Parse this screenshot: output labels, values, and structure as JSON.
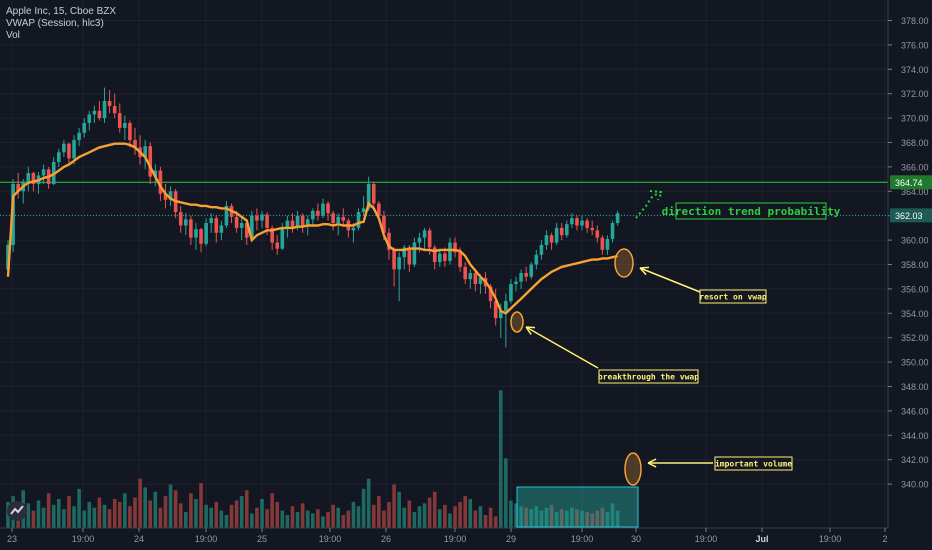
{
  "legend": {
    "symbol": "Apple Inc, 15, Cboe BZX",
    "indicator": "VWAP (Session, hlc3)",
    "volume": "Vol"
  },
  "chart_data": {
    "type": "candlestick",
    "ylim": [
      338.4,
      380.0
    ],
    "y_ticks": [
      "378.00",
      "376.00",
      "374.00",
      "372.00",
      "370.00",
      "368.00",
      "366.00",
      "364.00",
      "362.00",
      "360.00",
      "358.00",
      "356.00",
      "354.00",
      "352.00",
      "350.00",
      "348.00",
      "346.00",
      "344.00",
      "342.00",
      "340.00"
    ],
    "x_ticks": [
      "23",
      "19:00",
      "24",
      "19:00",
      "25",
      "19:00",
      "26",
      "19:00",
      "29",
      "19:00",
      "30",
      "19:00",
      "Jul",
      "19:00",
      "2"
    ],
    "price_labels": [
      {
        "value": 364.74,
        "text": "364.74",
        "color": "#2ecc40",
        "style": "solid"
      },
      {
        "value": 362.03,
        "text": "362.03",
        "color": "#26a69a",
        "style": "dotted"
      }
    ],
    "colors": {
      "up": "#26a69a",
      "down": "#ef5350",
      "vwap": "#f7a134",
      "annotation": "#fff176",
      "bg": "#131722"
    },
    "ohlc": [
      [
        357.6,
        360.0,
        357.0,
        359.6
      ],
      [
        359.6,
        365.0,
        359.0,
        364.6
      ],
      [
        364.6,
        365.5,
        363.4,
        364.0
      ],
      [
        364.0,
        365.0,
        363.0,
        364.8
      ],
      [
        364.8,
        366.0,
        364.0,
        365.5
      ],
      [
        365.5,
        365.6,
        364.0,
        364.6
      ],
      [
        364.6,
        365.6,
        363.8,
        365.3
      ],
      [
        365.3,
        366.2,
        364.6,
        365.8
      ],
      [
        365.8,
        366.0,
        364.2,
        364.6
      ],
      [
        364.6,
        366.8,
        364.5,
        366.4
      ],
      [
        366.4,
        367.5,
        366.0,
        367.2
      ],
      [
        367.2,
        368.2,
        366.8,
        367.9
      ],
      [
        367.9,
        368.0,
        366.2,
        366.7
      ],
      [
        366.7,
        368.6,
        366.2,
        368.2
      ],
      [
        368.2,
        369.2,
        367.7,
        368.8
      ],
      [
        368.8,
        370.0,
        368.4,
        369.6
      ],
      [
        369.6,
        370.6,
        369.0,
        370.3
      ],
      [
        370.3,
        371.0,
        369.6,
        370.6
      ],
      [
        370.6,
        371.4,
        369.8,
        370.0
      ],
      [
        370.0,
        372.5,
        369.6,
        371.4
      ],
      [
        371.4,
        372.3,
        370.4,
        371.0
      ],
      [
        371.0,
        372.0,
        370.0,
        370.4
      ],
      [
        370.4,
        371.2,
        368.8,
        369.2
      ],
      [
        369.2,
        370.2,
        368.2,
        369.6
      ],
      [
        369.6,
        369.8,
        367.6,
        368.2
      ],
      [
        368.2,
        369.2,
        367.0,
        367.6
      ],
      [
        367.6,
        368.6,
        366.2,
        366.8
      ],
      [
        366.8,
        368.2,
        365.8,
        367.7
      ],
      [
        367.7,
        368.0,
        364.6,
        365.2
      ],
      [
        365.2,
        366.2,
        364.4,
        365.7
      ],
      [
        365.7,
        366.0,
        363.2,
        363.8
      ],
      [
        363.8,
        364.6,
        362.6,
        363.3
      ],
      [
        363.3,
        364.4,
        362.8,
        364.0
      ],
      [
        364.0,
        364.2,
        361.8,
        362.3
      ],
      [
        362.3,
        362.8,
        360.6,
        361.2
      ],
      [
        361.2,
        362.2,
        360.4,
        361.7
      ],
      [
        361.7,
        362.0,
        359.6,
        360.2
      ],
      [
        360.2,
        361.4,
        359.2,
        360.9
      ],
      [
        360.9,
        361.0,
        359.0,
        359.7
      ],
      [
        359.7,
        361.8,
        359.5,
        361.4
      ],
      [
        361.4,
        362.2,
        360.6,
        361.8
      ],
      [
        361.8,
        362.0,
        359.8,
        360.6
      ],
      [
        360.6,
        361.6,
        360.0,
        361.2
      ],
      [
        361.2,
        363.2,
        361.0,
        362.8
      ],
      [
        362.8,
        363.0,
        361.4,
        361.9
      ],
      [
        361.9,
        362.4,
        360.6,
        361.0
      ],
      [
        361.0,
        361.8,
        360.0,
        361.4
      ],
      [
        361.4,
        361.6,
        359.6,
        360.2
      ],
      [
        360.2,
        362.4,
        360.0,
        362.0
      ],
      [
        362.0,
        362.6,
        360.8,
        361.6
      ],
      [
        361.6,
        362.4,
        361.0,
        362.1
      ],
      [
        362.1,
        362.3,
        360.4,
        361.0
      ],
      [
        361.0,
        361.2,
        359.2,
        359.8
      ],
      [
        359.8,
        360.4,
        358.8,
        359.3
      ],
      [
        359.3,
        361.4,
        359.2,
        361.0
      ],
      [
        361.0,
        362.0,
        360.2,
        361.6
      ],
      [
        361.6,
        362.2,
        360.6,
        361.1
      ],
      [
        361.1,
        362.4,
        360.8,
        362.0
      ],
      [
        362.0,
        362.2,
        360.6,
        361.2
      ],
      [
        361.2,
        362.0,
        360.4,
        361.7
      ],
      [
        361.7,
        362.6,
        361.2,
        362.4
      ],
      [
        362.4,
        363.0,
        361.6,
        362.0
      ],
      [
        362.0,
        363.4,
        361.8,
        363.0
      ],
      [
        363.0,
        363.2,
        361.6,
        362.2
      ],
      [
        362.2,
        362.4,
        360.8,
        361.4
      ],
      [
        361.4,
        362.2,
        360.4,
        361.9
      ],
      [
        361.9,
        362.6,
        361.2,
        361.6
      ],
      [
        361.6,
        361.8,
        360.2,
        360.8
      ],
      [
        360.8,
        361.4,
        359.8,
        361.0
      ],
      [
        361.0,
        362.6,
        360.8,
        362.3
      ],
      [
        362.3,
        363.6,
        362.0,
        362.6
      ],
      [
        362.6,
        365.2,
        362.4,
        364.6
      ],
      [
        364.6,
        364.8,
        362.4,
        363.0
      ],
      [
        363.0,
        363.2,
        361.6,
        362.0
      ],
      [
        362.0,
        362.4,
        360.0,
        360.6
      ],
      [
        360.6,
        361.0,
        358.4,
        359.2
      ],
      [
        359.2,
        359.4,
        356.2,
        357.6
      ],
      [
        357.6,
        359.0,
        355.0,
        358.6
      ],
      [
        358.6,
        359.6,
        357.6,
        359.4
      ],
      [
        359.4,
        359.6,
        357.4,
        358.0
      ],
      [
        358.0,
        360.2,
        357.8,
        359.8
      ],
      [
        359.8,
        360.6,
        359.0,
        360.2
      ],
      [
        360.2,
        361.0,
        359.2,
        360.8
      ],
      [
        360.8,
        361.0,
        358.8,
        359.4
      ],
      [
        359.4,
        359.6,
        357.6,
        358.2
      ],
      [
        358.2,
        359.2,
        357.8,
        358.9
      ],
      [
        358.9,
        359.4,
        357.8,
        358.3
      ],
      [
        358.3,
        360.2,
        358.0,
        359.8
      ],
      [
        359.8,
        360.2,
        358.6,
        359.0
      ],
      [
        359.0,
        359.4,
        357.4,
        357.8
      ],
      [
        357.8,
        358.2,
        356.4,
        356.8
      ],
      [
        356.8,
        357.6,
        356.0,
        357.3
      ],
      [
        357.3,
        357.6,
        355.8,
        356.4
      ],
      [
        356.4,
        357.2,
        355.6,
        356.9
      ],
      [
        356.9,
        357.4,
        355.6,
        356.2
      ],
      [
        356.2,
        356.4,
        354.4,
        355.0
      ],
      [
        355.0,
        356.0,
        353.0,
        353.6
      ],
      [
        353.6,
        354.8,
        352.0,
        354.2
      ],
      [
        354.2,
        355.6,
        351.2,
        355.0
      ],
      [
        355.0,
        356.8,
        354.8,
        356.4
      ],
      [
        356.4,
        357.0,
        355.8,
        356.6
      ],
      [
        356.6,
        357.6,
        356.0,
        357.3
      ],
      [
        357.3,
        357.8,
        356.6,
        357.0
      ],
      [
        357.0,
        358.2,
        356.8,
        358.0
      ],
      [
        358.0,
        359.2,
        357.6,
        358.8
      ],
      [
        358.8,
        360.0,
        358.4,
        359.6
      ],
      [
        359.6,
        360.8,
        359.2,
        360.4
      ],
      [
        360.4,
        360.6,
        359.2,
        359.8
      ],
      [
        359.8,
        361.4,
        359.6,
        361.0
      ],
      [
        361.0,
        361.4,
        360.0,
        360.4
      ],
      [
        360.4,
        361.6,
        360.2,
        361.3
      ],
      [
        361.3,
        362.2,
        361.0,
        361.8
      ],
      [
        361.8,
        362.0,
        360.8,
        361.2
      ],
      [
        361.2,
        362.0,
        360.8,
        361.6
      ],
      [
        361.6,
        361.8,
        360.6,
        361.0
      ],
      [
        361.0,
        361.6,
        360.4,
        360.8
      ],
      [
        360.8,
        361.2,
        359.8,
        360.2
      ],
      [
        360.2,
        360.4,
        358.8,
        359.2
      ],
      [
        359.2,
        360.4,
        358.8,
        360.1
      ],
      [
        360.1,
        361.6,
        359.8,
        361.4
      ],
      [
        361.4,
        362.4,
        361.2,
        362.2
      ]
    ],
    "volume": [
      18,
      22,
      15,
      26,
      17,
      12,
      19,
      14,
      24,
      16,
      20,
      13,
      22,
      15,
      27,
      12,
      18,
      14,
      21,
      16,
      13,
      20,
      18,
      24,
      15,
      21,
      34,
      28,
      19,
      25,
      14,
      22,
      30,
      26,
      17,
      11,
      24,
      20,
      31,
      16,
      14,
      18,
      12,
      9,
      16,
      19,
      22,
      26,
      10,
      14,
      20,
      13,
      24,
      18,
      12,
      9,
      15,
      11,
      17,
      12,
      10,
      13,
      8,
      11,
      16,
      14,
      9,
      12,
      18,
      15,
      27,
      34,
      16,
      22,
      12,
      18,
      30,
      25,
      14,
      19,
      11,
      15,
      17,
      21,
      25,
      13,
      16,
      10,
      15,
      18,
      22,
      20,
      12,
      15,
      9,
      14,
      8,
      95,
      48,
      19,
      17,
      15,
      14,
      13,
      15,
      12,
      14,
      16,
      11,
      13,
      12,
      14,
      13,
      12,
      11,
      10,
      12,
      14,
      11,
      17,
      12
    ],
    "vwap": [
      357.0,
      363.6,
      364.0,
      364.4,
      364.7,
      364.8,
      364.9,
      365.1,
      365.2,
      365.4,
      365.7,
      366.0,
      366.2,
      366.5,
      366.8,
      367.0,
      367.2,
      367.4,
      367.6,
      367.7,
      367.8,
      367.9,
      367.9,
      367.9,
      367.8,
      367.6,
      367.2,
      366.8,
      366.0,
      365.2,
      364.4,
      363.8,
      363.4,
      363.2,
      363.1,
      363.0,
      362.9,
      362.9,
      362.8,
      362.8,
      362.7,
      362.7,
      362.6,
      362.6,
      362.4,
      362.2,
      361.9,
      361.6,
      360.0,
      360.4,
      360.6,
      360.8,
      360.8,
      360.9,
      361.0,
      361.0,
      361.0,
      361.1,
      361.1,
      361.2,
      361.2,
      361.2,
      361.3,
      361.3,
      361.2,
      361.3,
      361.2,
      361.2,
      361.2,
      361.4,
      361.5,
      363.0,
      362.6,
      361.8,
      360.4,
      359.5,
      359.2,
      359.2,
      359.2,
      359.3,
      359.3,
      359.3,
      359.2,
      359.2,
      359.1,
      359.2,
      359.2,
      359.2,
      359.2,
      359.1,
      358.7,
      358.0,
      357.5,
      357.0,
      356.6,
      356.0,
      355.2,
      354.2,
      354.0,
      354.4,
      354.8,
      355.2,
      355.6,
      356.0,
      356.4,
      356.8,
      357.1,
      357.4,
      357.6,
      357.8,
      357.9,
      358.0,
      358.1,
      358.2,
      358.3,
      358.4,
      358.4,
      358.5,
      358.5,
      358.6,
      358.7
    ],
    "annotations": [
      {
        "text": "direction trend probability",
        "color": "#2ecc40"
      },
      {
        "text": "resort on vwap",
        "color": "#fff176"
      },
      {
        "text": "breakthrough the vwap",
        "color": "#fff176"
      },
      {
        "text": "important volume",
        "color": "#fff176"
      }
    ]
  }
}
